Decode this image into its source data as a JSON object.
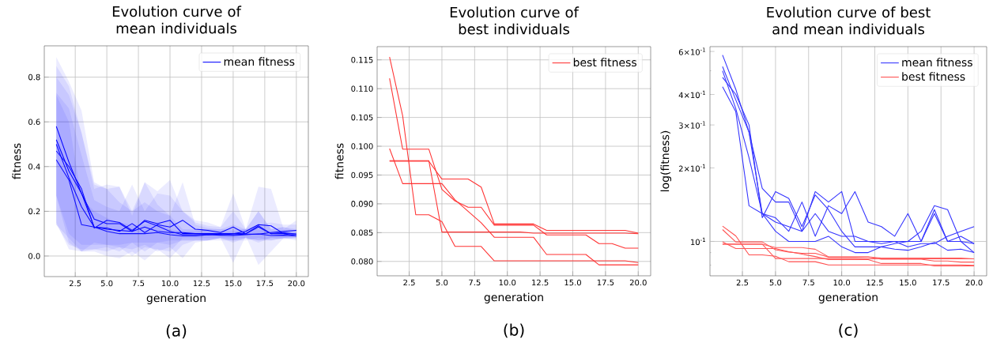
{
  "chart_data": [
    {
      "type": "line",
      "title": "Evolution curve of mean individuals",
      "xlabel": "generation",
      "ylabel": "fitness",
      "annotations": [
        "(a)"
      ],
      "x": [
        1,
        2,
        3,
        4,
        5,
        6,
        7,
        8,
        9,
        10,
        11,
        12,
        13,
        14,
        15,
        16,
        17,
        18,
        19,
        20
      ],
      "xlim": [
        0.05,
        20.95
      ],
      "ylim": [
        -0.092,
        0.94
      ],
      "xticks": [
        {
          "value": 2.5,
          "label": "2.5"
        },
        {
          "value": 5,
          "label": "5.0"
        },
        {
          "value": 7.5,
          "label": "7.5"
        },
        {
          "value": 10,
          "label": "10.0"
        },
        {
          "value": 12.5,
          "label": "12.5"
        },
        {
          "value": 15,
          "label": "15.0"
        },
        {
          "value": 17.5,
          "label": "17.5"
        },
        {
          "value": 20,
          "label": "20.0"
        }
      ],
      "yticks": [
        {
          "value": 0,
          "label": "0.0"
        },
        0.2,
        0.4,
        0.6,
        0.8
      ],
      "grid": true,
      "legend": "top right",
      "series": [
        {
          "name": "mean fitness",
          "color": "#0000ff",
          "values": [
            0.58,
            0.42,
            0.28,
            0.13,
            0.12,
            0.115,
            0.11,
            0.16,
            0.145,
            0.16,
            0.1,
            0.1,
            0.1,
            0.1,
            0.1,
            0.11,
            0.14,
            0.135,
            0.1,
            0.098
          ],
          "upper": [
            0.89,
            0.78,
            0.65,
            0.33,
            0.3,
            0.31,
            0.2,
            0.33,
            0.29,
            0.34,
            0.2,
            0.15,
            0.135,
            0.13,
            0.28,
            0.12,
            0.31,
            0.3,
            0.12,
            0.16
          ],
          "lower": [
            0.27,
            0.06,
            0.02,
            0.02,
            0.0,
            -0.01,
            0.02,
            -0.02,
            0.03,
            -0.01,
            0.05,
            0.07,
            0.07,
            0.08,
            -0.03,
            0.09,
            -0.04,
            0.02,
            0.08,
            0.07
          ]
        },
        {
          "color": "#0404ff",
          "values": [
            0.52,
            0.38,
            0.28,
            0.165,
            0.145,
            0.145,
            0.11,
            0.13,
            0.11,
            0.105,
            0.105,
            0.1,
            0.098,
            0.1,
            0.095,
            0.098,
            0.098,
            0.105,
            0.11,
            0.115
          ],
          "upper": [
            0.85,
            0.76,
            0.55,
            0.32,
            0.3,
            0.24,
            0.2,
            0.24,
            0.2,
            0.18,
            0.33,
            0.14,
            0.125,
            0.12,
            0.14,
            0.12,
            0.14,
            0.15,
            0.14,
            0.14
          ],
          "lower": [
            0.15,
            0.03,
            0.02,
            0.03,
            0.02,
            0.04,
            0.03,
            0.05,
            0.02,
            0.04,
            -0.01,
            0.06,
            0.07,
            0.08,
            0.06,
            0.08,
            0.07,
            0.07,
            0.08,
            0.09
          ]
        },
        {
          "color": "#0808ff",
          "values": [
            0.5,
            0.35,
            0.22,
            0.13,
            0.125,
            0.11,
            0.145,
            0.105,
            0.14,
            0.13,
            0.16,
            0.12,
            0.115,
            0.105,
            0.13,
            0.1,
            0.135,
            0.1,
            0.1,
            0.09
          ],
          "upper": [
            0.73,
            0.66,
            0.45,
            0.25,
            0.22,
            0.2,
            0.32,
            0.2,
            0.28,
            0.27,
            0.2,
            0.16,
            0.15,
            0.13,
            0.2,
            0.12,
            0.2,
            0.12,
            0.13,
            0.11
          ],
          "lower": [
            0.27,
            0.1,
            0.05,
            0.05,
            0.05,
            0.04,
            0.0,
            0.04,
            0.03,
            0.02,
            0.08,
            0.08,
            0.08,
            0.08,
            0.07,
            0.08,
            0.07,
            0.08,
            0.08,
            0.08
          ]
        },
        {
          "color": "#0c0cff",
          "values": [
            0.47,
            0.4,
            0.3,
            0.125,
            0.16,
            0.15,
            0.115,
            0.155,
            0.135,
            0.11,
            0.095,
            0.095,
            0.095,
            0.098,
            0.1,
            0.1,
            0.13,
            0.1,
            0.105,
            0.098
          ],
          "upper": [
            0.8,
            0.72,
            0.55,
            0.3,
            0.32,
            0.31,
            0.18,
            0.33,
            0.23,
            0.18,
            0.12,
            0.12,
            0.12,
            0.12,
            0.12,
            0.12,
            0.2,
            0.12,
            0.13,
            0.12
          ],
          "lower": [
            0.14,
            0.05,
            0.03,
            0.03,
            0.04,
            0.02,
            0.06,
            0.02,
            0.06,
            0.05,
            0.07,
            0.07,
            0.07,
            0.08,
            0.08,
            0.08,
            0.06,
            0.08,
            0.075,
            0.08
          ]
        },
        {
          "color": "#1010ff",
          "values": [
            0.43,
            0.34,
            0.14,
            0.13,
            0.11,
            0.1,
            0.1,
            0.1,
            0.105,
            0.095,
            0.09,
            0.09,
            0.095,
            0.093,
            0.092,
            0.095,
            0.099,
            0.092,
            0.093,
            0.09
          ],
          "upper": [
            0.72,
            0.6,
            0.26,
            0.2,
            0.17,
            0.15,
            0.14,
            0.14,
            0.15,
            0.12,
            0.11,
            0.11,
            0.12,
            0.11,
            0.11,
            0.12,
            0.12,
            0.11,
            0.11,
            0.1
          ],
          "lower": [
            0.14,
            0.08,
            0.02,
            0.06,
            0.05,
            0.05,
            0.06,
            0.06,
            0.06,
            0.07,
            0.07,
            0.07,
            0.07,
            0.07,
            0.07,
            0.07,
            0.08,
            0.07,
            0.08,
            0.08
          ]
        }
      ]
    },
    {
      "type": "line",
      "title": "Evolution curve of best individuals",
      "xlabel": "generation",
      "ylabel": "fitness",
      "annotations": [
        "(b)"
      ],
      "x": [
        1,
        2,
        3,
        4,
        5,
        6,
        7,
        8,
        9,
        10,
        11,
        12,
        13,
        14,
        15,
        16,
        17,
        18,
        19,
        20
      ],
      "xlim": [
        0.05,
        20.95
      ],
      "ylim": [
        0.0775,
        0.1173
      ],
      "xticks": [
        {
          "value": 2.5,
          "label": "2.5"
        },
        {
          "value": 5,
          "label": "5.0"
        },
        {
          "value": 7.5,
          "label": "7.5"
        },
        {
          "value": 10,
          "label": "10.0"
        },
        {
          "value": 12.5,
          "label": "12.5"
        },
        {
          "value": 15,
          "label": "15.0"
        },
        {
          "value": 17.5,
          "label": "17.5"
        },
        {
          "value": 20,
          "label": "20.0"
        }
      ],
      "yticks": [
        {
          "value": 0.08,
          "label": "0.080"
        },
        0.085,
        {
          "value": 0.09,
          "label": "0.090"
        },
        0.095,
        {
          "value": 0.1,
          "label": "0.100"
        },
        0.105,
        {
          "value": 0.11,
          "label": "0.110"
        },
        0.115
      ],
      "grid": true,
      "legend": "top right",
      "series": [
        {
          "name": "best fitness",
          "color": "#ff3333",
          "values": [
            0.1155,
            0.1053,
            0.0881,
            0.0881,
            0.0869,
            0.0826,
            0.0826,
            0.0826,
            0.0801,
            0.0801,
            0.0801,
            0.0801,
            0.0801,
            0.0801,
            0.0801,
            0.0801,
            0.0801,
            0.0801,
            0.0801,
            0.0798
          ]
        },
        {
          "color": "#ff3333",
          "values": [
            0.1118,
            0.0995,
            0.0995,
            0.0995,
            0.0925,
            0.0905,
            0.0894,
            0.0894,
            0.0863,
            0.0863,
            0.0863,
            0.0863,
            0.0846,
            0.0846,
            0.0846,
            0.0846,
            0.0831,
            0.0831,
            0.0823,
            0.0823
          ]
        },
        {
          "color": "#ff3333",
          "values": [
            0.0996,
            0.0935,
            0.0935,
            0.0935,
            0.0935,
            0.0907,
            0.0887,
            0.0867,
            0.0842,
            0.0842,
            0.0842,
            0.0842,
            0.0812,
            0.0812,
            0.0812,
            0.0812,
            0.0794,
            0.0794,
            0.0794,
            0.0794
          ]
        },
        {
          "color": "#ff3333",
          "values": [
            0.0975,
            0.0975,
            0.0975,
            0.0975,
            0.0851,
            0.0851,
            0.0851,
            0.0851,
            0.0851,
            0.0851,
            0.0851,
            0.0849,
            0.0849,
            0.0849,
            0.0849,
            0.0849,
            0.0849,
            0.0849,
            0.0849,
            0.0848
          ]
        },
        {
          "color": "#ff3333",
          "values": [
            0.0974,
            0.0974,
            0.0974,
            0.0974,
            0.0943,
            0.0943,
            0.0943,
            0.0929,
            0.0865,
            0.0865,
            0.0865,
            0.0865,
            0.0854,
            0.0854,
            0.0854,
            0.0854,
            0.0854,
            0.0854,
            0.0854,
            0.0849
          ]
        }
      ]
    },
    {
      "type": "line",
      "title": "Evolution curve of best and mean individuals",
      "xlabel": "generation",
      "ylabel": "log(fitness)",
      "annotations": [
        "(c)"
      ],
      "x": [
        1,
        2,
        3,
        4,
        5,
        6,
        7,
        8,
        9,
        10,
        11,
        12,
        13,
        14,
        15,
        16,
        17,
        18,
        19,
        20
      ],
      "xlim": [
        0.05,
        20.95
      ],
      "ylim": [
        0.0723,
        0.628
      ],
      "log": "y",
      "xticks": [
        {
          "value": 2.5,
          "label": "2.5"
        },
        {
          "value": 5,
          "label": "5.0"
        },
        {
          "value": 7.5,
          "label": "7.5"
        },
        {
          "value": 10,
          "label": "10.0"
        },
        {
          "value": 12.5,
          "label": "12.5"
        },
        {
          "value": 15,
          "label": "15.0"
        },
        {
          "value": 17.5,
          "label": "17.5"
        },
        {
          "value": 20,
          "label": "20.0"
        }
      ],
      "yticks": [
        {
          "value": 0.08,
          "label": null
        },
        {
          "value": 0.09,
          "label": null
        },
        {
          "value": 0.1,
          "label": "10$^{-1}$"
        },
        {
          "value": 0.2,
          "label": "2×10$^{-1}$"
        },
        {
          "value": 0.3,
          "label": "3×10$^{-1}$"
        },
        {
          "value": 0.4,
          "label": "4×10$^{-1}$"
        },
        {
          "value": 0.5,
          "label": null
        },
        {
          "value": 0.6,
          "label": "6×10$^{-1}$"
        }
      ],
      "grid": true,
      "legend": "top right",
      "series": [
        {
          "name": "mean fitness",
          "color": "#3333ff",
          "values": [
            0.58,
            0.42,
            0.28,
            0.13,
            0.12,
            0.115,
            0.11,
            0.16,
            0.145,
            0.16,
            0.1,
            0.1,
            0.1,
            0.1,
            0.1,
            0.11,
            0.14,
            0.135,
            0.1,
            0.098
          ]
        },
        {
          "color": "#3333ff",
          "values": [
            0.52,
            0.38,
            0.28,
            0.165,
            0.145,
            0.145,
            0.11,
            0.13,
            0.11,
            0.105,
            0.105,
            0.1,
            0.098,
            0.1,
            0.095,
            0.098,
            0.098,
            0.105,
            0.11,
            0.115
          ]
        },
        {
          "color": "#3333ff",
          "values": [
            0.5,
            0.35,
            0.22,
            0.13,
            0.125,
            0.11,
            0.145,
            0.105,
            0.14,
            0.13,
            0.16,
            0.12,
            0.115,
            0.105,
            0.13,
            0.1,
            0.135,
            0.1,
            0.1,
            0.09
          ]
        },
        {
          "color": "#3333ff",
          "values": [
            0.47,
            0.4,
            0.3,
            0.125,
            0.16,
            0.15,
            0.115,
            0.155,
            0.135,
            0.11,
            0.095,
            0.095,
            0.095,
            0.098,
            0.1,
            0.1,
            0.13,
            0.1,
            0.105,
            0.098
          ]
        },
        {
          "color": "#3333ff",
          "values": [
            0.43,
            0.34,
            0.14,
            0.13,
            0.11,
            0.1,
            0.1,
            0.1,
            0.105,
            0.095,
            0.09,
            0.09,
            0.095,
            0.093,
            0.092,
            0.095,
            0.099,
            0.092,
            0.093,
            0.09
          ]
        },
        {
          "name": "best fitness",
          "color": "#ff4d4d",
          "values": [
            0.1155,
            0.1053,
            0.0881,
            0.0881,
            0.0869,
            0.0826,
            0.0826,
            0.0826,
            0.0801,
            0.0801,
            0.0801,
            0.0801,
            0.0801,
            0.0801,
            0.0801,
            0.0801,
            0.0801,
            0.0801,
            0.0801,
            0.0798
          ]
        },
        {
          "color": "#ff5151",
          "values": [
            0.1118,
            0.0995,
            0.0995,
            0.0995,
            0.0925,
            0.0905,
            0.0894,
            0.0894,
            0.0863,
            0.0863,
            0.0863,
            0.0863,
            0.0846,
            0.0846,
            0.0846,
            0.0846,
            0.0831,
            0.0831,
            0.0823,
            0.0823
          ]
        },
        {
          "color": "#ff5555",
          "values": [
            0.0996,
            0.0935,
            0.0935,
            0.0935,
            0.0935,
            0.0907,
            0.0887,
            0.0867,
            0.0842,
            0.0842,
            0.0842,
            0.0842,
            0.0812,
            0.0812,
            0.0812,
            0.0812,
            0.0794,
            0.0794,
            0.0794,
            0.0794
          ]
        },
        {
          "color": "#ff5959",
          "values": [
            0.0975,
            0.0975,
            0.0975,
            0.0975,
            0.0851,
            0.0851,
            0.0851,
            0.0851,
            0.0851,
            0.0851,
            0.0851,
            0.0849,
            0.0849,
            0.0849,
            0.0849,
            0.0849,
            0.0849,
            0.0849,
            0.0849,
            0.0848
          ]
        },
        {
          "color": "#ff5d5d",
          "values": [
            0.0974,
            0.0974,
            0.0974,
            0.0974,
            0.0943,
            0.0943,
            0.0943,
            0.0929,
            0.0865,
            0.0865,
            0.0865,
            0.0865,
            0.0854,
            0.0854,
            0.0854,
            0.0854,
            0.0854,
            0.0854,
            0.0854,
            0.0849
          ]
        }
      ]
    }
  ]
}
